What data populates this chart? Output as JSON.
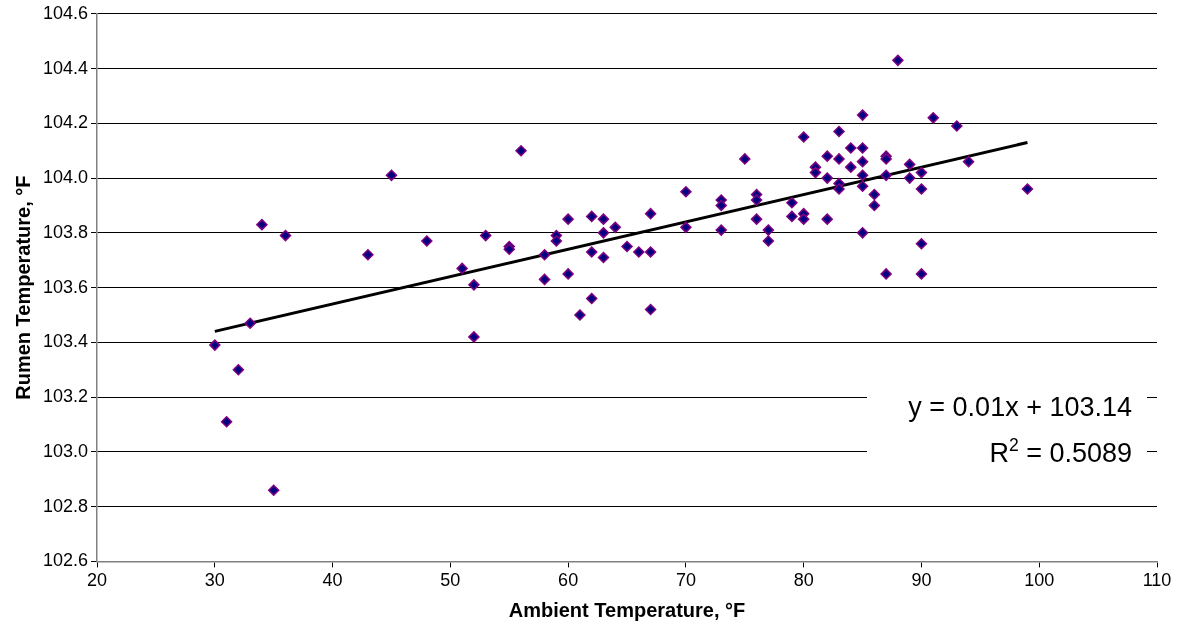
{
  "chart_data": {
    "type": "scatter",
    "xlabel": "Ambient Temperature, °F",
    "ylabel": "Rumen Temperature, °F",
    "xlim": [
      20,
      110
    ],
    "xticks": [
      20,
      30,
      40,
      50,
      60,
      70,
      80,
      90,
      100,
      110
    ],
    "ylim": [
      102.6,
      104.6
    ],
    "yticks": [
      {
        "value": 102.6,
        "label": "102.6"
      },
      {
        "value": 102.8,
        "label": "102.8"
      },
      {
        "value": 103.0,
        "label": "103.0"
      },
      {
        "value": 103.2,
        "label": "103.2"
      },
      {
        "value": 103.4,
        "label": "103.4"
      },
      {
        "value": 103.6,
        "label": "103.6"
      },
      {
        "value": 103.8,
        "label": "103.8"
      },
      {
        "value": 104.0,
        "label": "104.0"
      },
      {
        "value": 104.2,
        "label": "104.2"
      },
      {
        "value": 104.4,
        "label": "104.4"
      },
      {
        "value": 104.6,
        "label": "104.6"
      }
    ],
    "grid": "y",
    "legend": false,
    "annotations": [
      "y = 0.01x + 103.14",
      "R$^{2}$ = 0.5089"
    ],
    "series": [
      {
        "marker": "diamond",
        "color": "#000080",
        "x": [
          30,
          31,
          32,
          33,
          34,
          35,
          36,
          43,
          45,
          48,
          51,
          52,
          52,
          53,
          55,
          55,
          56,
          58,
          58,
          59,
          59,
          60,
          60,
          61,
          62,
          62,
          62,
          63,
          63,
          63,
          64,
          65,
          66,
          67,
          67,
          67,
          70,
          70,
          73,
          73,
          73,
          75,
          76,
          76,
          76,
          77,
          77,
          79,
          79,
          80,
          80,
          80,
          81,
          81,
          82,
          82,
          82,
          83,
          83,
          83,
          83,
          84,
          84,
          85,
          85,
          85,
          85,
          85,
          85,
          86,
          86,
          87,
          87,
          87,
          87,
          88,
          89,
          89,
          90,
          90,
          90,
          90,
          91,
          93,
          94,
          99
        ],
        "values": [
          103.39,
          103.11,
          103.3,
          103.47,
          103.83,
          102.86,
          103.79,
          103.72,
          104.01,
          103.77,
          103.67,
          103.61,
          103.42,
          103.79,
          103.75,
          103.74,
          104.1,
          103.72,
          103.63,
          103.79,
          103.77,
          103.85,
          103.65,
          103.5,
          103.86,
          103.73,
          103.56,
          103.85,
          103.8,
          103.71,
          103.82,
          103.75,
          103.73,
          103.87,
          103.73,
          103.52,
          103.95,
          103.82,
          103.92,
          103.9,
          103.81,
          104.07,
          103.94,
          103.92,
          103.85,
          103.81,
          103.77,
          103.91,
          103.86,
          104.15,
          103.87,
          103.85,
          104.04,
          104.02,
          104.08,
          104.0,
          103.85,
          104.17,
          104.07,
          103.98,
          103.96,
          104.11,
          104.04,
          104.23,
          104.11,
          104.06,
          104.01,
          103.97,
          103.8,
          103.94,
          103.9,
          104.08,
          104.07,
          104.01,
          103.65,
          104.43,
          104.05,
          104.0,
          104.02,
          103.96,
          103.76,
          103.65,
          104.22,
          104.19,
          104.06,
          103.96
        ]
      },
      {
        "type": "line",
        "color": "#000000",
        "x": [
          30,
          99
        ],
        "values": [
          103.44,
          104.13
        ]
      }
    ]
  }
}
